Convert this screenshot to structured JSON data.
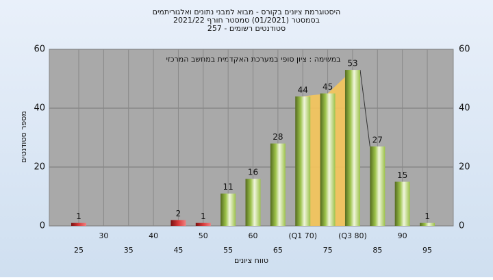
{
  "chart_data": {
    "type": "bar",
    "title": "היסטוגרמת ציונים בקורס - מבוא למבני נתונים ואלגוריתמים",
    "subtitle": "בסמסטר  (01/2021)  סמסטר חורף 2021/22",
    "subtitle2": "סטודנטים רשומים - 257",
    "annotation": "במשימה : ציון סופי במערכת האקדמית במחשב המרכזי",
    "x_label": "טווח ציונים",
    "y_label": "מספר סטודנטים",
    "categories": [
      "25",
      "30",
      "35",
      "40",
      "45",
      "50",
      "55",
      "60",
      "65",
      "(Q1 70)",
      "75",
      "(Q3 80)",
      "85",
      "90",
      "95"
    ],
    "values": [
      1,
      0,
      0,
      0,
      2,
      1,
      11,
      16,
      28,
      44,
      45,
      53,
      27,
      15,
      1
    ],
    "colors": [
      "#d83a3a",
      "#d83a3a",
      "#d83a3a",
      "#d83a3a",
      "#d83a3a",
      "#d83a3a",
      "#9cc24a",
      "#9cc24a",
      "#9cc24a",
      "#9cc24a",
      "#9cc24a",
      "#9cc24a",
      "#9cc24a",
      "#9cc24a",
      "#9cc24a"
    ],
    "quartile_color": "#f5c55a",
    "ylim": [
      0,
      60
    ],
    "yticks": [
      0,
      20,
      40,
      60
    ],
    "y2lim": [
      0,
      60
    ],
    "y2ticks": [
      0,
      20,
      40,
      60
    ],
    "grid": true
  }
}
